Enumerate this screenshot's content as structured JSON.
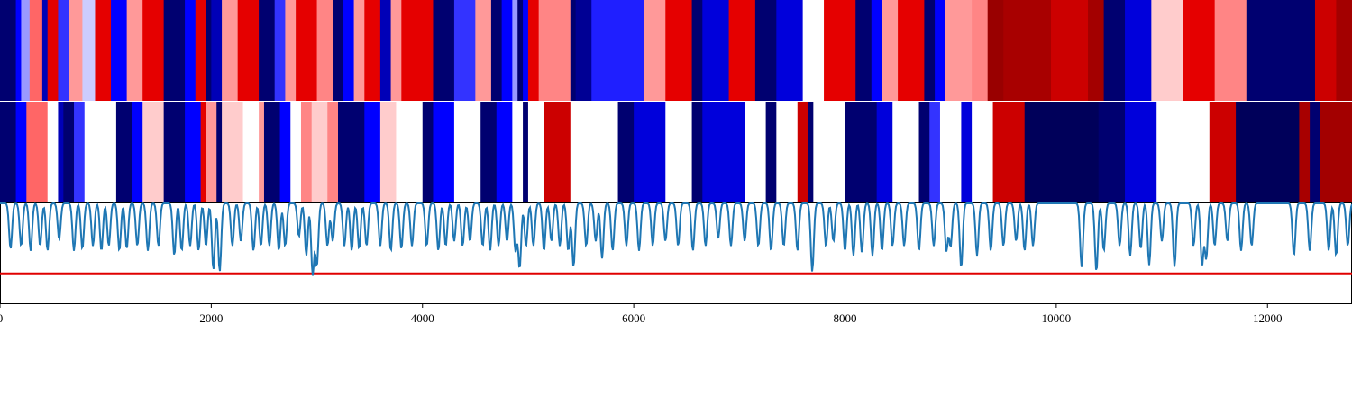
{
  "chart_data": {
    "type": "heatmap",
    "x_range": [
      0,
      12800
    ],
    "xticks": [
      "0",
      "2000",
      "4000",
      "6000",
      "8000",
      "10000",
      "12000"
    ],
    "xtick_values": [
      0,
      2000,
      4000,
      6000,
      8000,
      10000,
      12000
    ],
    "colormap": "seismic",
    "colors": {
      "blue_dark": "#00004c",
      "blue": "#0000ff",
      "white": "#ffffff",
      "red": "#ff0000",
      "red_dark": "#7f0000",
      "line": "#1f77b4",
      "threshold": "#e00000",
      "axis": "#000000"
    },
    "heatmap_rows": [
      {
        "segments": [
          [
            0,
            150,
            0.05
          ],
          [
            150,
            200,
            0.25
          ],
          [
            200,
            280,
            0.4
          ],
          [
            280,
            400,
            0.65
          ],
          [
            400,
            450,
            0.15
          ],
          [
            450,
            550,
            0.8
          ],
          [
            550,
            650,
            0.3
          ],
          [
            650,
            780,
            0.6
          ],
          [
            780,
            900,
            0.45
          ],
          [
            900,
            1050,
            0.8
          ],
          [
            1050,
            1200,
            0.25
          ],
          [
            1200,
            1350,
            0.6
          ],
          [
            1350,
            1550,
            0.8
          ],
          [
            1550,
            1750,
            0.05
          ],
          [
            1750,
            1850,
            0.25
          ],
          [
            1850,
            1950,
            0.8
          ],
          [
            1950,
            2000,
            0.05
          ],
          [
            2000,
            2100,
            0.15
          ],
          [
            2100,
            2250,
            0.6
          ],
          [
            2250,
            2450,
            0.8
          ],
          [
            2450,
            2600,
            0.05
          ],
          [
            2600,
            2700,
            0.3
          ],
          [
            2700,
            2800,
            0.6
          ],
          [
            2800,
            3000,
            0.8
          ],
          [
            3000,
            3150,
            0.62
          ],
          [
            3150,
            3250,
            0.05
          ],
          [
            3250,
            3350,
            0.25
          ],
          [
            3350,
            3450,
            0.6
          ],
          [
            3450,
            3600,
            0.8
          ],
          [
            3600,
            3700,
            0.15
          ],
          [
            3700,
            3800,
            0.6
          ],
          [
            3800,
            4100,
            0.8
          ],
          [
            4100,
            4300,
            0.05
          ],
          [
            4300,
            4500,
            0.3
          ],
          [
            4500,
            4650,
            0.6
          ],
          [
            4650,
            4750,
            0.05
          ],
          [
            4750,
            4850,
            0.25
          ],
          [
            4850,
            4900,
            0.4
          ],
          [
            4900,
            4950,
            0.05
          ],
          [
            4950,
            5000,
            0.25
          ],
          [
            5000,
            5100,
            0.8
          ],
          [
            5100,
            5400,
            0.62
          ],
          [
            5400,
            5450,
            0.05
          ],
          [
            5450,
            5600,
            0.1
          ],
          [
            5600,
            6100,
            0.28
          ],
          [
            6100,
            6300,
            0.6
          ],
          [
            6300,
            6550,
            0.8
          ],
          [
            6550,
            6650,
            0.05
          ],
          [
            6650,
            6900,
            0.2
          ],
          [
            6900,
            7150,
            0.8
          ],
          [
            7150,
            7350,
            0.05
          ],
          [
            7350,
            7600,
            0.2
          ],
          [
            7600,
            7800,
            0.5
          ],
          [
            7800,
            8100,
            0.8
          ],
          [
            8100,
            8250,
            0.05
          ],
          [
            8250,
            8350,
            0.25
          ],
          [
            8350,
            8500,
            0.6
          ],
          [
            8500,
            8750,
            0.8
          ],
          [
            8750,
            8850,
            0.05
          ],
          [
            8850,
            8950,
            0.25
          ],
          [
            8950,
            9200,
            0.6
          ],
          [
            9200,
            9350,
            0.62
          ],
          [
            9350,
            9500,
            0.95
          ],
          [
            9500,
            9950,
            0.92
          ],
          [
            9950,
            10300,
            0.85
          ],
          [
            10300,
            10450,
            0.93
          ],
          [
            10450,
            10650,
            0.05
          ],
          [
            10650,
            10900,
            0.2
          ],
          [
            10900,
            11200,
            0.55
          ],
          [
            11200,
            11500,
            0.8
          ],
          [
            11500,
            11800,
            0.62
          ],
          [
            11800,
            12450,
            0.05
          ],
          [
            12450,
            12650,
            0.85
          ],
          [
            12650,
            12800,
            0.93
          ]
        ]
      },
      {
        "segments": [
          [
            0,
            150,
            0.05
          ],
          [
            150,
            250,
            0.25
          ],
          [
            250,
            450,
            0.65
          ],
          [
            450,
            550,
            0.5
          ],
          [
            550,
            600,
            0.15
          ],
          [
            600,
            700,
            0.05
          ],
          [
            700,
            800,
            0.3
          ],
          [
            800,
            1100,
            0.5
          ],
          [
            1100,
            1250,
            0.05
          ],
          [
            1250,
            1350,
            0.25
          ],
          [
            1350,
            1550,
            0.55
          ],
          [
            1550,
            1750,
            0.05
          ],
          [
            1750,
            1900,
            0.25
          ],
          [
            1900,
            1950,
            0.8
          ],
          [
            1950,
            2050,
            0.6
          ],
          [
            2050,
            2100,
            0.05
          ],
          [
            2100,
            2300,
            0.55
          ],
          [
            2300,
            2450,
            0.5
          ],
          [
            2450,
            2500,
            0.6
          ],
          [
            2500,
            2650,
            0.05
          ],
          [
            2650,
            2750,
            0.25
          ],
          [
            2750,
            2850,
            0.5
          ],
          [
            2850,
            2950,
            0.62
          ],
          [
            2950,
            3100,
            0.55
          ],
          [
            3100,
            3200,
            0.62
          ],
          [
            3200,
            3450,
            0.05
          ],
          [
            3450,
            3600,
            0.25
          ],
          [
            3600,
            3750,
            0.55
          ],
          [
            3750,
            4000,
            0.5
          ],
          [
            4000,
            4100,
            0.05
          ],
          [
            4100,
            4300,
            0.25
          ],
          [
            4300,
            4550,
            0.5
          ],
          [
            4550,
            4700,
            0.05
          ],
          [
            4700,
            4850,
            0.25
          ],
          [
            4850,
            4950,
            0.5
          ],
          [
            4950,
            5000,
            0.05
          ],
          [
            5000,
            5150,
            0.5
          ],
          [
            5150,
            5400,
            0.85
          ],
          [
            5400,
            5500,
            0.5
          ],
          [
            5500,
            5850,
            0.5
          ],
          [
            5850,
            6000,
            0.05
          ],
          [
            6000,
            6300,
            0.2
          ],
          [
            6300,
            6550,
            0.5
          ],
          [
            6550,
            6650,
            0.05
          ],
          [
            6650,
            7050,
            0.2
          ],
          [
            7050,
            7250,
            0.5
          ],
          [
            7250,
            7350,
            0.05
          ],
          [
            7350,
            7550,
            0.5
          ],
          [
            7550,
            7650,
            0.85
          ],
          [
            7650,
            7700,
            0.05
          ],
          [
            7700,
            8000,
            0.5
          ],
          [
            8000,
            8300,
            0.05
          ],
          [
            8300,
            8450,
            0.2
          ],
          [
            8450,
            8700,
            0.5
          ],
          [
            8700,
            8800,
            0.05
          ],
          [
            8800,
            8900,
            0.3
          ],
          [
            8900,
            9100,
            0.5
          ],
          [
            9100,
            9200,
            0.2
          ],
          [
            9200,
            9400,
            0.5
          ],
          [
            9400,
            9700,
            0.85
          ],
          [
            9700,
            10400,
            0.02
          ],
          [
            10400,
            10650,
            0.05
          ],
          [
            10650,
            10950,
            0.2
          ],
          [
            10950,
            11300,
            0.5
          ],
          [
            11300,
            11450,
            0.5
          ],
          [
            11450,
            11700,
            0.85
          ],
          [
            11700,
            12300,
            0.02
          ],
          [
            12300,
            12400,
            0.92
          ],
          [
            12400,
            12500,
            0.05
          ],
          [
            12500,
            12800,
            0.93
          ]
        ]
      }
    ],
    "line_series": {
      "y_range": [
        0,
        1
      ],
      "threshold": 0.3,
      "baseline": 1.0,
      "dips": [
        [
          100,
          0.52
        ],
        [
          200,
          0.55
        ],
        [
          290,
          0.5
        ],
        [
          380,
          0.55
        ],
        [
          450,
          0.5
        ],
        [
          560,
          0.62
        ],
        [
          700,
          0.5
        ],
        [
          780,
          0.52
        ],
        [
          880,
          0.55
        ],
        [
          960,
          0.5
        ],
        [
          1030,
          0.55
        ],
        [
          1130,
          0.5
        ],
        [
          1200,
          0.52
        ],
        [
          1300,
          0.55
        ],
        [
          1400,
          0.5
        ],
        [
          1500,
          0.55
        ],
        [
          1650,
          0.45
        ],
        [
          1720,
          0.5
        ],
        [
          1800,
          0.55
        ],
        [
          1880,
          0.5
        ],
        [
          1950,
          0.55
        ],
        [
          2020,
          0.3
        ],
        [
          2080,
          0.28
        ],
        [
          2200,
          0.55
        ],
        [
          2280,
          0.6
        ],
        [
          2400,
          0.5
        ],
        [
          2470,
          0.55
        ],
        [
          2550,
          0.55
        ],
        [
          2640,
          0.5
        ],
        [
          2700,
          0.55
        ],
        [
          2830,
          0.65
        ],
        [
          2900,
          0.45
        ],
        [
          2960,
          0.25
        ],
        [
          3000,
          0.35
        ],
        [
          3100,
          0.55
        ],
        [
          3150,
          0.6
        ],
        [
          3260,
          0.55
        ],
        [
          3330,
          0.5
        ],
        [
          3400,
          0.52
        ],
        [
          3470,
          0.55
        ],
        [
          3600,
          0.55
        ],
        [
          3700,
          0.5
        ],
        [
          3800,
          0.52
        ],
        [
          3900,
          0.55
        ],
        [
          4040,
          0.55
        ],
        [
          4150,
          0.5
        ],
        [
          4220,
          0.55
        ],
        [
          4300,
          0.6
        ],
        [
          4380,
          0.55
        ],
        [
          4450,
          0.6
        ],
        [
          4570,
          0.55
        ],
        [
          4640,
          0.5
        ],
        [
          4720,
          0.55
        ],
        [
          4800,
          0.6
        ],
        [
          4880,
          0.5
        ],
        [
          4920,
          0.32
        ],
        [
          4980,
          0.55
        ],
        [
          5050,
          0.55
        ],
        [
          5150,
          0.5
        ],
        [
          5220,
          0.6
        ],
        [
          5300,
          0.55
        ],
        [
          5380,
          0.5
        ],
        [
          5430,
          0.33
        ],
        [
          5550,
          0.55
        ],
        [
          5640,
          0.6
        ],
        [
          5700,
          0.42
        ],
        [
          5800,
          0.5
        ],
        [
          5930,
          0.55
        ],
        [
          6050,
          0.5
        ],
        [
          6180,
          0.55
        ],
        [
          6300,
          0.6
        ],
        [
          6420,
          0.55
        ],
        [
          6560,
          0.5
        ],
        [
          6680,
          0.55
        ],
        [
          6800,
          0.63
        ],
        [
          6920,
          0.55
        ],
        [
          7050,
          0.6
        ],
        [
          7180,
          0.55
        ],
        [
          7300,
          0.5
        ],
        [
          7420,
          0.55
        ],
        [
          7550,
          0.5
        ],
        [
          7690,
          0.28
        ],
        [
          7820,
          0.55
        ],
        [
          7890,
          0.6
        ],
        [
          8000,
          0.5
        ],
        [
          8080,
          0.45
        ],
        [
          8160,
          0.48
        ],
        [
          8260,
          0.45
        ],
        [
          8350,
          0.5
        ],
        [
          8450,
          0.55
        ],
        [
          8560,
          0.55
        ],
        [
          8700,
          0.5
        ],
        [
          8840,
          0.55
        ],
        [
          8960,
          0.5
        ],
        [
          9000,
          0.55
        ],
        [
          9100,
          0.32
        ],
        [
          9250,
          0.45
        ],
        [
          9380,
          0.5
        ],
        [
          9500,
          0.55
        ],
        [
          9620,
          0.6
        ],
        [
          9700,
          0.5
        ],
        [
          9780,
          0.55
        ],
        [
          10240,
          0.33
        ],
        [
          10380,
          0.28
        ],
        [
          10450,
          0.5
        ],
        [
          10600,
          0.55
        ],
        [
          10700,
          0.45
        ],
        [
          10800,
          0.52
        ],
        [
          10880,
          0.35
        ],
        [
          11000,
          0.6
        ],
        [
          11120,
          0.33
        ],
        [
          11300,
          0.55
        ],
        [
          11380,
          0.35
        ],
        [
          11420,
          0.42
        ],
        [
          11500,
          0.55
        ],
        [
          11620,
          0.6
        ],
        [
          11750,
          0.5
        ],
        [
          11850,
          0.55
        ],
        [
          12250,
          0.45
        ],
        [
          12400,
          0.5
        ],
        [
          12580,
          0.5
        ],
        [
          12650,
          0.45
        ],
        [
          12760,
          0.55
        ]
      ]
    }
  }
}
